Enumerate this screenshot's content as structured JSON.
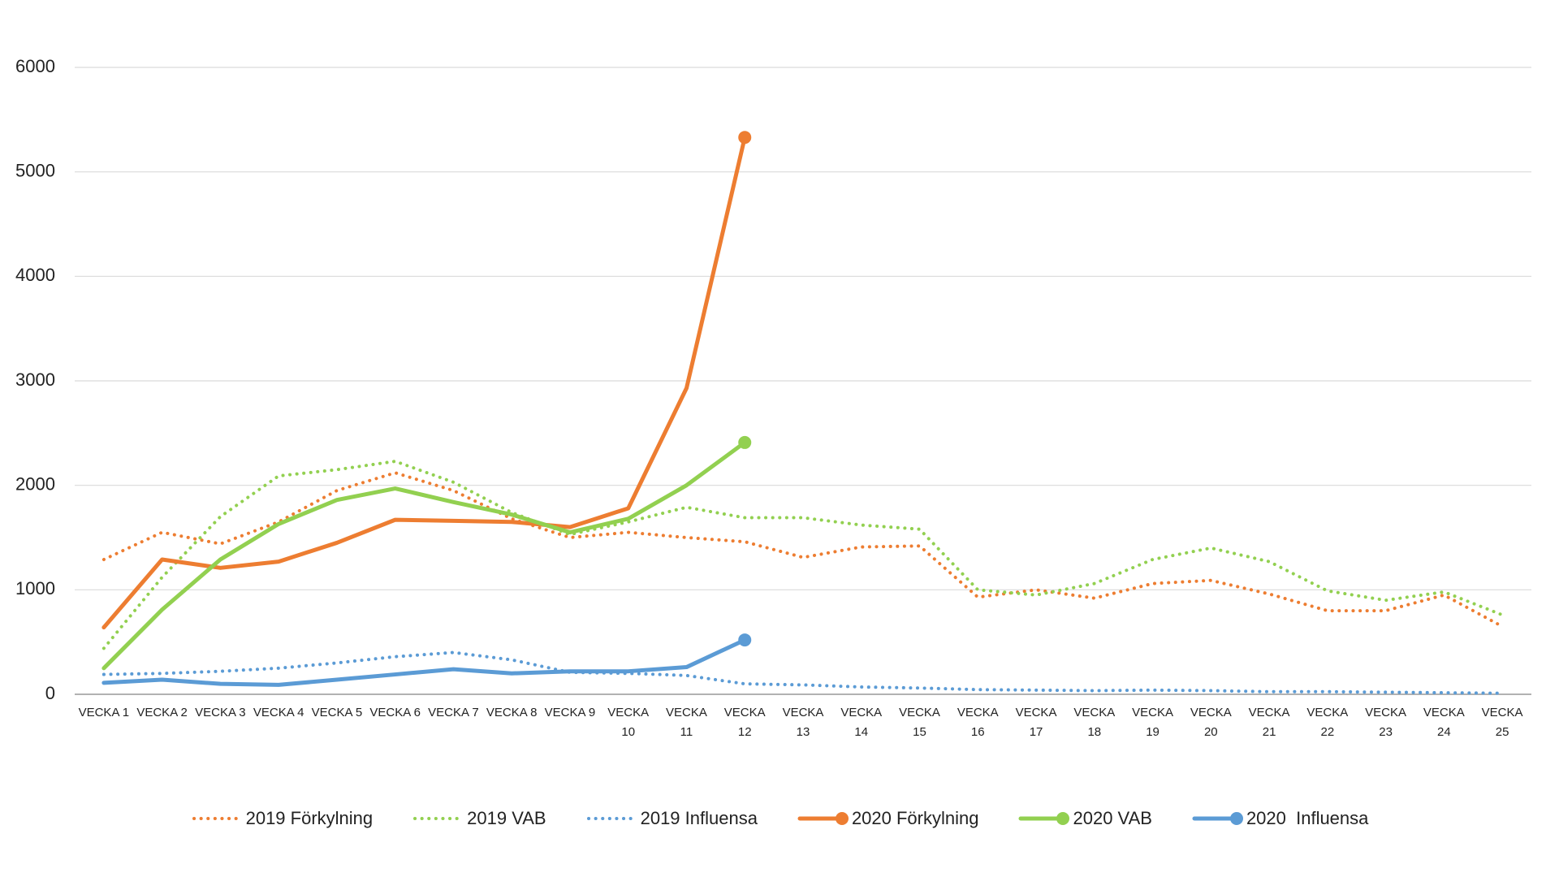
{
  "chart_data": {
    "type": "line",
    "categories": [
      "VECKA 1",
      "VECKA 2",
      "VECKA 3",
      "VECKA 4",
      "VECKA 5",
      "VECKA 6",
      "VECKA 7",
      "VECKA 8",
      "VECKA 9",
      "VECKA 10",
      "VECKA 11",
      "VECKA 12",
      "VECKA 13",
      "VECKA 14",
      "VECKA 15",
      "VECKA 16",
      "VECKA 17",
      "VECKA 18",
      "VECKA 19",
      "VECKA 20",
      "VECKA 21",
      "VECKA 22",
      "VECKA 23",
      "VECKA 24",
      "VECKA 25"
    ],
    "series": [
      {
        "name": "2019 Förkylning",
        "color": "#ed7d31",
        "line_style": "dotted",
        "values": [
          1290,
          1550,
          1440,
          1650,
          1950,
          2120,
          1950,
          1680,
          1500,
          1550,
          1500,
          1460,
          1310,
          1410,
          1420,
          930,
          1000,
          920,
          1060,
          1090,
          960,
          800,
          800,
          950,
          650
        ]
      },
      {
        "name": "2019 VAB",
        "color": "#92d050",
        "line_style": "dotted",
        "values": [
          440,
          1120,
          1700,
          2090,
          2150,
          2230,
          2030,
          1740,
          1530,
          1650,
          1790,
          1690,
          1690,
          1620,
          1580,
          1000,
          950,
          1060,
          1290,
          1400,
          1270,
          990,
          900,
          980,
          760
        ]
      },
      {
        "name": "2019 Influensa",
        "color": "#5b9bd5",
        "line_style": "dotted",
        "values": [
          190,
          200,
          220,
          250,
          300,
          360,
          400,
          330,
          210,
          200,
          180,
          100,
          90,
          70,
          60,
          45,
          40,
          35,
          40,
          35,
          25,
          25,
          20,
          15,
          10
        ]
      },
      {
        "name": "2020 Förkylning",
        "color": "#ed7d31",
        "line_style": "solid",
        "end_marker": true,
        "values": [
          640,
          1290,
          1210,
          1270,
          1450,
          1670,
          1660,
          1650,
          1600,
          1780,
          2930,
          5330,
          null,
          null,
          null,
          null,
          null,
          null,
          null,
          null,
          null,
          null,
          null,
          null,
          null
        ]
      },
      {
        "name": "2020 VAB",
        "color": "#92d050",
        "line_style": "solid",
        "end_marker": true,
        "values": [
          250,
          810,
          1290,
          1630,
          1860,
          1970,
          1840,
          1720,
          1550,
          1680,
          2000,
          2410,
          null,
          null,
          null,
          null,
          null,
          null,
          null,
          null,
          null,
          null,
          null,
          null,
          null
        ]
      },
      {
        "name": "2020  Influensa",
        "color": "#5b9bd5",
        "line_style": "solid",
        "end_marker": true,
        "values": [
          110,
          140,
          100,
          90,
          140,
          190,
          240,
          200,
          220,
          220,
          260,
          520,
          null,
          null,
          null,
          null,
          null,
          null,
          null,
          null,
          null,
          null,
          null,
          null,
          null
        ]
      }
    ],
    "ylim": [
      0,
      6000
    ],
    "yticks": [
      0,
      1000,
      2000,
      3000,
      4000,
      5000,
      6000
    ],
    "grid": true,
    "legend": "bottom"
  }
}
